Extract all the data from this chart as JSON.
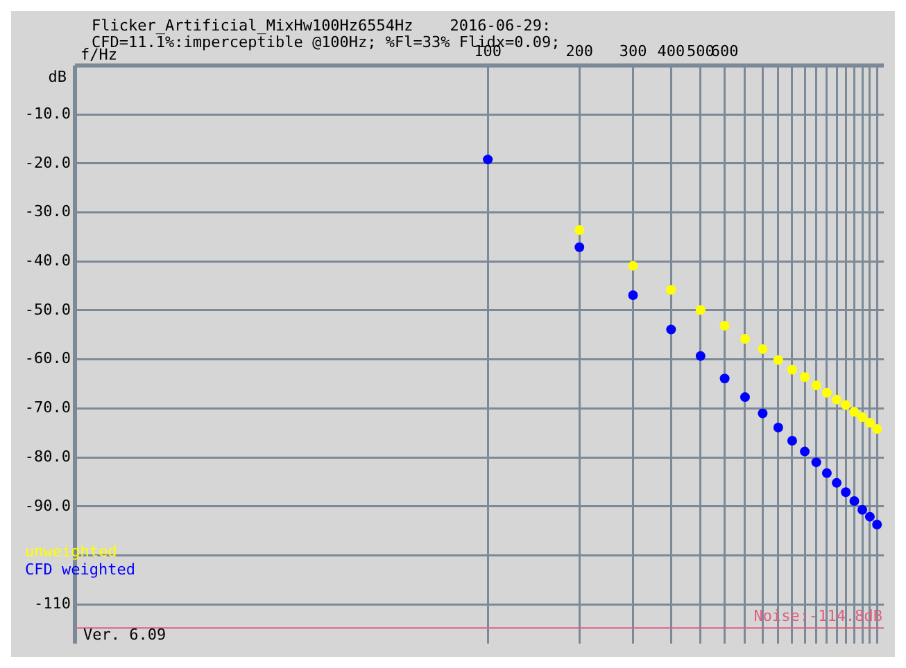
{
  "chart_data": {
    "type": "scatter",
    "title": "Flicker_Artificial_MixHw100Hz6554Hz    2016-06-29:",
    "subtitle": "CFD=11.1%:imperceptible @100Hz; %Fl=33% Flidx=0.09;",
    "xlabel": "f/Hz",
    "ylabel": "dB",
    "x": [
      100,
      200,
      300,
      400,
      500,
      600,
      700,
      800,
      900,
      1000,
      1100,
      1200,
      1300,
      1400,
      1500,
      1600,
      1700,
      1800,
      1900
    ],
    "series": [
      {
        "name": "unweighted",
        "color": "#ffff00",
        "values": [
          null,
          -33.6,
          -40.9,
          -45.8,
          -49.9,
          -53.1,
          -55.8,
          -57.9,
          -60.1,
          -62.1,
          -63.6,
          -65.3,
          -66.8,
          -68.2,
          -69.3,
          -70.7,
          -71.8,
          -72.9,
          -74.2
        ]
      },
      {
        "name": "CFD weighted",
        "color": "#0000ff",
        "values": [
          -19.2,
          -37.1,
          -46.9,
          -53.9,
          -59.3,
          -63.9,
          -67.7,
          -71.0,
          -73.9,
          -76.6,
          -78.8,
          -81.0,
          -83.2,
          -85.2,
          -87.1,
          -88.9,
          -90.7,
          -92.1,
          -93.7
        ]
      }
    ],
    "log": "x",
    "xlim": [
      4.4,
      2000
    ],
    "xticks": [
      100,
      200,
      300,
      400,
      500,
      600,
      {
        "value": 700,
        "label": null
      },
      {
        "value": 800,
        "label": null
      },
      {
        "value": 900,
        "label": null
      },
      {
        "value": 1000,
        "label": null
      },
      {
        "value": 1100,
        "label": null
      },
      {
        "value": 1200,
        "label": null
      },
      {
        "value": 1300,
        "label": null
      },
      {
        "value": 1400,
        "label": null
      },
      {
        "value": 1500,
        "label": null
      },
      {
        "value": 1600,
        "label": null
      },
      {
        "value": 1700,
        "label": null
      },
      {
        "value": 1800,
        "label": null
      },
      {
        "value": 1900,
        "label": null
      }
    ],
    "ylim": [
      -118,
      0
    ],
    "yticks": [
      {
        "value": -10,
        "label": "-10.0"
      },
      {
        "value": -20,
        "label": "-20.0"
      },
      {
        "value": -30,
        "label": "-30.0"
      },
      {
        "value": -40,
        "label": "-40.0"
      },
      {
        "value": -50,
        "label": "-50.0"
      },
      {
        "value": -60,
        "label": "-60.0"
      },
      {
        "value": -70,
        "label": "-70.0"
      },
      {
        "value": -80,
        "label": "-80.0"
      },
      {
        "value": -90,
        "label": "-90.0"
      },
      {
        "value": -100,
        "label": null
      },
      -110
    ],
    "ref_lines": [
      {
        "axis": "y",
        "value": -114.8,
        "label": "Noise:-114.8dB",
        "color": "#e06080"
      }
    ],
    "annotations": [
      "Ver. 6.09"
    ],
    "grid": true,
    "legend": "bottom left",
    "marker": "circle"
  }
}
